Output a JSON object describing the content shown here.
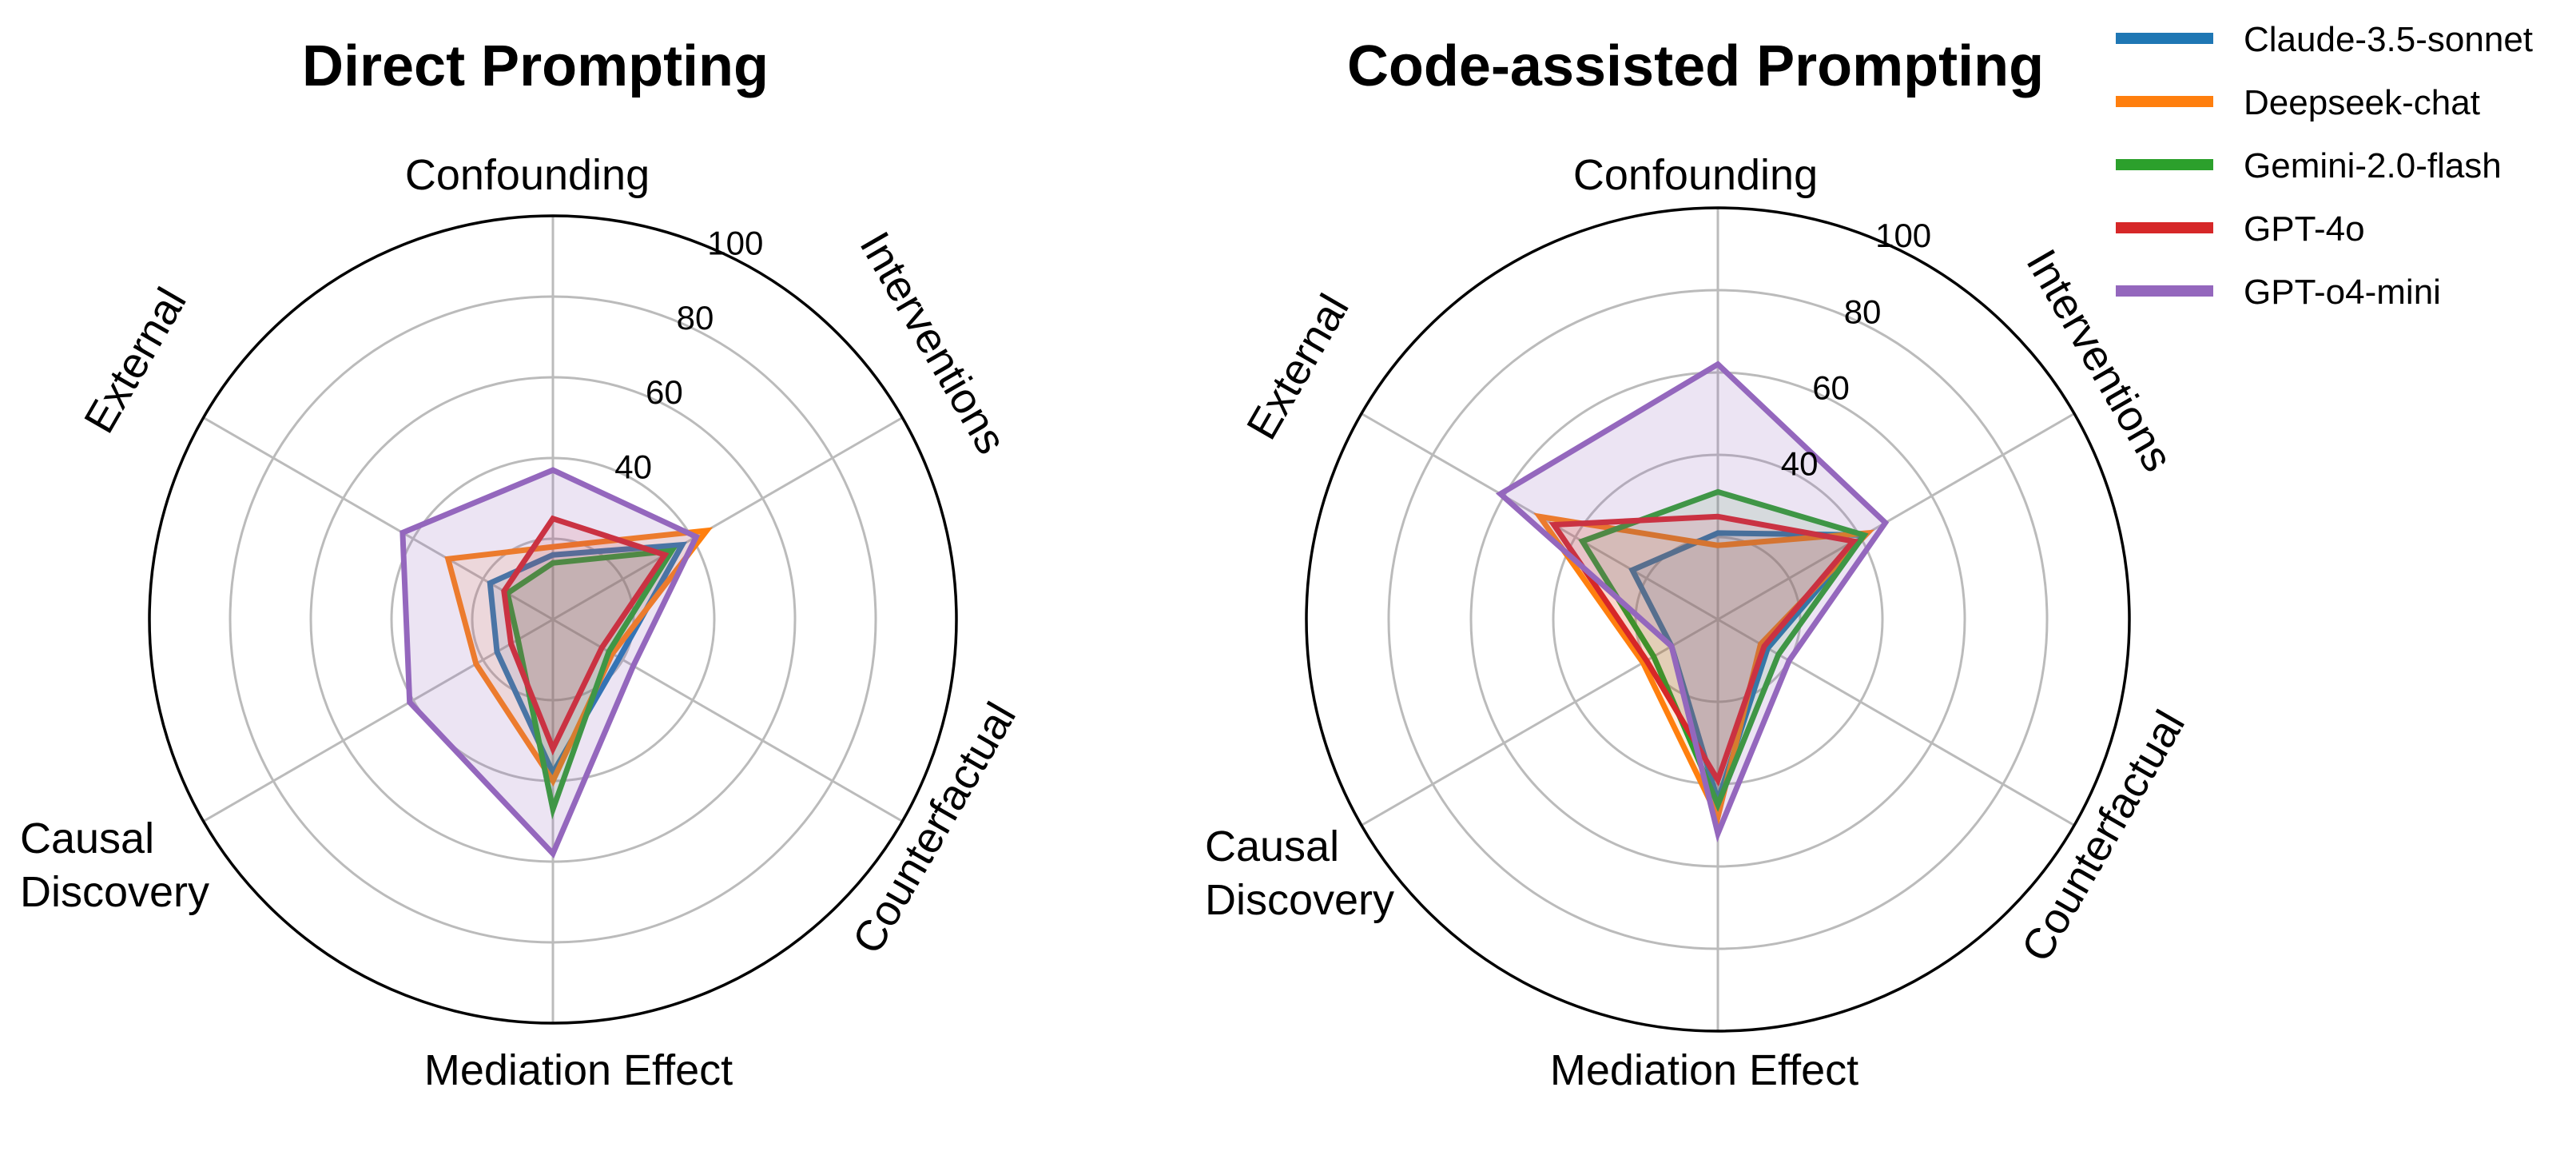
{
  "chart_data": [
    {
      "type": "radar",
      "title": "Direct Prompting",
      "axes": [
        "Confounding",
        "Interventions",
        "Counterfactual",
        "Mediation Effect",
        "Causal Discovery",
        "External"
      ],
      "rlim": [
        0,
        100
      ],
      "rticks": [
        40,
        60,
        80,
        100
      ],
      "series": [
        {
          "name": "Claude-3.5-sonnet",
          "values": [
            16,
            37,
            19,
            38,
            16,
            18
          ]
        },
        {
          "name": "Deepseek-chat",
          "values": [
            18,
            44,
            17,
            40,
            22,
            30
          ]
        },
        {
          "name": "Gemini-2.0-flash",
          "values": [
            14,
            34,
            16,
            47,
            10,
            13
          ]
        },
        {
          "name": "GPT-4o",
          "values": [
            25,
            32,
            14,
            32,
            12,
            14
          ]
        },
        {
          "name": "GPT-o4-mini",
          "values": [
            37,
            41,
            23,
            58,
            41,
            43
          ]
        }
      ]
    },
    {
      "type": "radar",
      "title": "Code-assisted Prompting",
      "axes": [
        "Confounding",
        "Interventions",
        "Counterfactual",
        "Mediation Effect",
        "Causal Discovery",
        "External"
      ],
      "rlim": [
        0,
        100
      ],
      "rticks": [
        40,
        60,
        80,
        100
      ],
      "series": [
        {
          "name": "Claude-3.5-sonnet",
          "values": [
            21,
            41,
            14,
            44,
            13,
            24
          ]
        },
        {
          "name": "Deepseek-chat",
          "values": [
            18,
            42,
            12,
            48,
            21,
            50
          ]
        },
        {
          "name": "Gemini-2.0-flash",
          "values": [
            31,
            41,
            17,
            45,
            18,
            38
          ]
        },
        {
          "name": "GPT-4o",
          "values": [
            25,
            38,
            13,
            39,
            20,
            46
          ]
        },
        {
          "name": "GPT-o4-mini",
          "values": [
            62,
            47,
            20,
            52,
            13,
            61
          ]
        }
      ]
    }
  ],
  "legend": {
    "placement": "top-right",
    "entries": [
      {
        "name": "Claude-3.5-sonnet",
        "color": "#1f77b4"
      },
      {
        "name": "Deepseek-chat",
        "color": "#ff7f0e"
      },
      {
        "name": "Gemini-2.0-flash",
        "color": "#2ca02c"
      },
      {
        "name": "GPT-4o",
        "color": "#d62728"
      },
      {
        "name": "GPT-o4-mini",
        "color": "#9467bd"
      }
    ]
  },
  "colors": {
    "grid": "#bbbbbb",
    "outer_ring": "#000000",
    "fill_series": "#9467bd"
  }
}
